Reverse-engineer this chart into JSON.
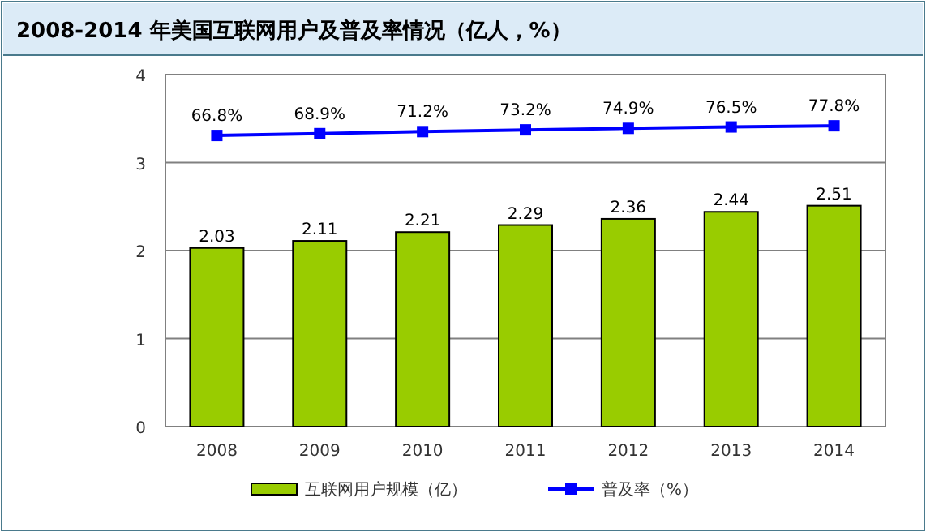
{
  "chart_data": {
    "type": "bar",
    "title": "2008-2014 年美国互联网用户及普及率情况（亿人，%）",
    "categories": [
      "2008",
      "2009",
      "2010",
      "2011",
      "2012",
      "2013",
      "2014"
    ],
    "series": [
      {
        "name": "互联网用户规模（亿）",
        "color": "#99cc00",
        "values": [
          2.03,
          2.11,
          2.21,
          2.29,
          2.36,
          2.44,
          2.51
        ]
      },
      {
        "name": "普及率（%）",
        "type": "line",
        "axis": "y2",
        "color": "#0000ff",
        "marker": "square",
        "values": [
          66.8,
          68.9,
          71.2,
          73.2,
          74.9,
          76.5,
          77.8
        ],
        "value_labels": [
          "66.8%",
          "68.9%",
          "71.2%",
          "73.2%",
          "74.9%",
          "76.5%",
          "77.8%"
        ]
      }
    ],
    "ylim": [
      0,
      4
    ],
    "yticks": [
      0,
      1,
      2,
      3,
      4
    ],
    "y2lim": [
      -264,
      136
    ],
    "grid": "y",
    "data_labels": true,
    "legend": "bottom"
  }
}
